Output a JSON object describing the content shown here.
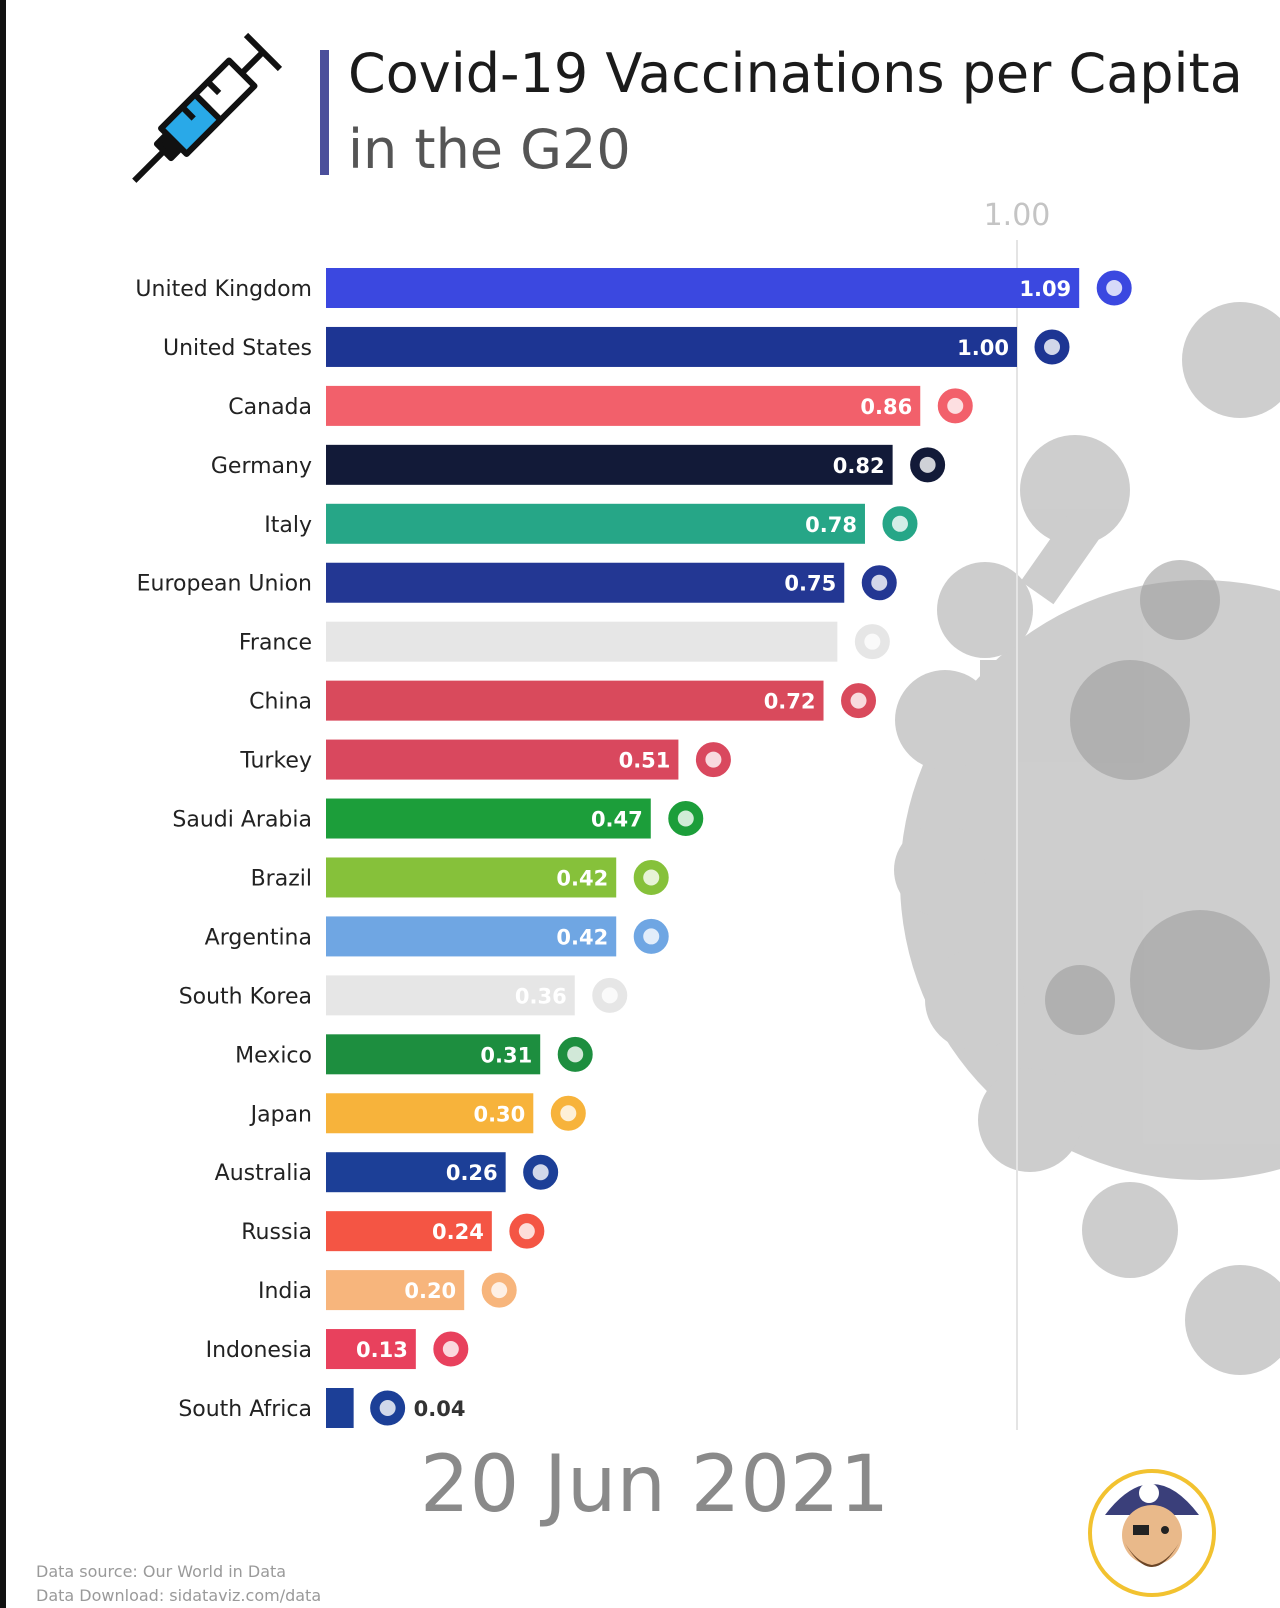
{
  "header": {
    "title": "Covid-19 Vaccinations per Capita",
    "subtitle": "in the G20"
  },
  "date_label": "20 Jun 2021",
  "footer": {
    "source_line1": "Data source: Our World in Data",
    "source_line2": "Data Download: sidataviz.com/data"
  },
  "icons": {
    "syringe": "syringe-icon",
    "mascot": "pirate-mascot-logo",
    "background": "virus-illustration"
  },
  "chart_data": {
    "type": "bar",
    "orientation": "horizontal",
    "title": "Covid-19 Vaccinations per Capita",
    "subtitle": "in the G20",
    "xlim": [
      0,
      1.2
    ],
    "ticks": [
      {
        "value": 1.0,
        "label": "1.00"
      }
    ],
    "grid": false,
    "categories": [
      "United Kingdom",
      "United States",
      "Canada",
      "Germany",
      "Italy",
      "European Union",
      "France",
      "China",
      "Turkey",
      "Saudi Arabia",
      "Brazil",
      "Argentina",
      "South Korea",
      "Mexico",
      "Japan",
      "Australia",
      "Russia",
      "India",
      "Indonesia",
      "South Africa"
    ],
    "values": [
      1.09,
      1.0,
      0.86,
      0.82,
      0.78,
      0.75,
      0.74,
      0.72,
      0.51,
      0.47,
      0.42,
      0.42,
      0.36,
      0.31,
      0.3,
      0.26,
      0.24,
      0.2,
      0.13,
      0.04
    ],
    "value_labels": [
      "1.09",
      "1.00",
      "0.86",
      "0.82",
      "0.78",
      "0.75",
      "",
      "0.72",
      "0.51",
      "0.47",
      "0.42",
      "0.42",
      "0.36",
      "0.31",
      "0.30",
      "0.26",
      "0.24",
      "0.20",
      "0.13",
      "0.04"
    ],
    "colors": [
      "#3b48e0",
      "#1d3593",
      "#f2606b",
      "#121a38",
      "#26a687",
      "#233793",
      "#e6e6e6",
      "#d94a5c",
      "#d9485e",
      "#1c9e3a",
      "#86c13a",
      "#6fa6e3",
      "#e6e6e6",
      "#1d8e3f",
      "#f7b33b",
      "#1c3f97",
      "#f45544",
      "#f7b57c",
      "#e8415d",
      "#1c3f97"
    ],
    "label_colors": [
      "#ffffff",
      "#ffffff",
      "#ffffff",
      "#ffffff",
      "#ffffff",
      "#ffffff",
      "#ffffff",
      "#ffffff",
      "#ffffff",
      "#ffffff",
      "#ffffff",
      "#ffffff",
      "#ffffff",
      "#ffffff",
      "#ffffff",
      "#ffffff",
      "#ffffff",
      "#ffffff",
      "#ffffff",
      "#333333"
    ],
    "flag_icons": [
      "uk-flag-icon",
      "us-flag-icon",
      "canada-flag-icon",
      "germany-flag-icon",
      "italy-flag-icon",
      "eu-flag-icon",
      "france-flag-icon",
      "china-flag-icon",
      "turkey-flag-icon",
      "saudi-arabia-flag-icon",
      "brazil-flag-icon",
      "argentina-flag-icon",
      "south-korea-flag-icon",
      "mexico-flag-icon",
      "japan-flag-icon",
      "australia-flag-icon",
      "russia-flag-icon",
      "india-flag-icon",
      "indonesia-flag-icon",
      "south-africa-flag-icon"
    ]
  }
}
